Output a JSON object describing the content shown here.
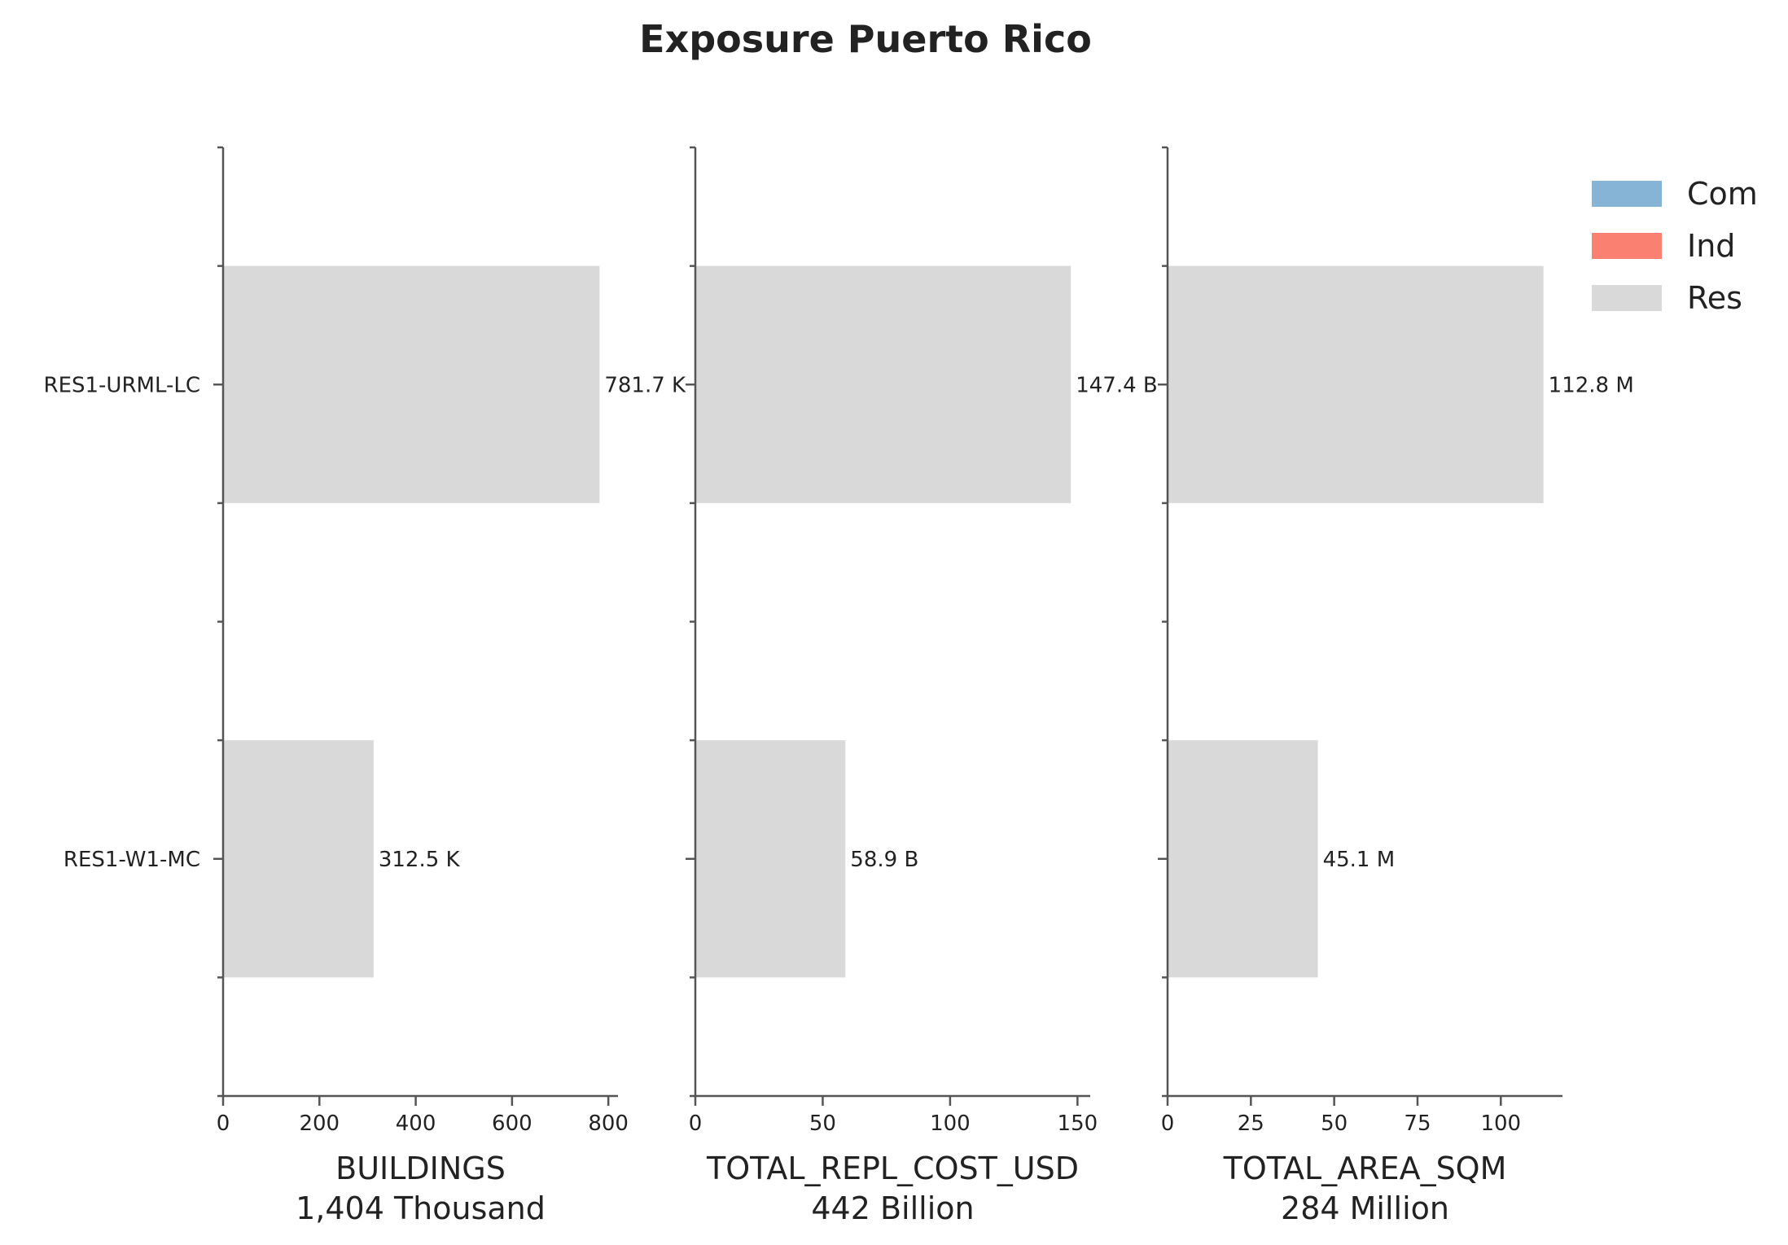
{
  "chart_data": {
    "type": "bar",
    "orientation": "horizontal",
    "title": "Exposure Puerto Rico",
    "categories": [
      "RES1-URML-LC",
      "RES1-W1-MC"
    ],
    "legend": {
      "placement": "top-right",
      "entries": [
        {
          "name": "Com",
          "color": "#85b4d6"
        },
        {
          "name": "Ind",
          "color": "#fa8072"
        },
        {
          "name": "Res",
          "color": "#d9d9d9"
        }
      ]
    },
    "panels": [
      {
        "xlabel": "BUILDINGS",
        "xlabel_total": "1,404 Thousand",
        "xlim": [
          0,
          820
        ],
        "xticks": [
          0,
          200,
          400,
          600,
          800
        ],
        "series": [
          {
            "name": "Res",
            "values": [
              781.7,
              312.5
            ]
          }
        ],
        "data_labels": [
          "781.7 K",
          "312.5 K"
        ]
      },
      {
        "xlabel": "TOTAL_REPL_COST_USD",
        "xlabel_total": "442 Billion",
        "xlim": [
          0,
          155
        ],
        "xticks": [
          0,
          50,
          100,
          150
        ],
        "series": [
          {
            "name": "Res",
            "values": [
              147.4,
              58.9
            ]
          }
        ],
        "data_labels": [
          "147.4 B",
          "58.9 B"
        ]
      },
      {
        "xlabel": "TOTAL_AREA_SQM",
        "xlabel_total": "284 Million",
        "xlim": [
          0,
          118.5
        ],
        "xticks": [
          0,
          25,
          50,
          75,
          100
        ],
        "series": [
          {
            "name": "Res",
            "values": [
              112.8,
              45.1
            ]
          }
        ],
        "data_labels": [
          "112.8 M",
          "45.1 M"
        ]
      }
    ],
    "grid": false
  }
}
